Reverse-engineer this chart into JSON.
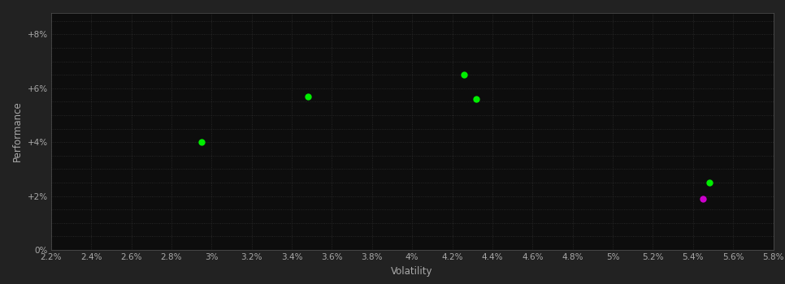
{
  "background_color": "#222222",
  "plot_bg_color": "#0d0d0d",
  "grid_color": "#2a2a2a",
  "xlabel": "Volatility",
  "ylabel": "Performance",
  "xlim": [
    0.022,
    0.058
  ],
  "ylim": [
    0.0,
    0.088
  ],
  "xticks": [
    0.022,
    0.024,
    0.026,
    0.028,
    0.03,
    0.032,
    0.034,
    0.036,
    0.038,
    0.04,
    0.042,
    0.044,
    0.046,
    0.048,
    0.05,
    0.052,
    0.054,
    0.056,
    0.058
  ],
  "yticks_major": [
    0.0,
    0.02,
    0.04,
    0.06,
    0.08
  ],
  "yticks_minor_step": 0.005,
  "xticks_minor_step": 0.002,
  "points_green": [
    [
      0.0295,
      0.04
    ],
    [
      0.0348,
      0.057
    ],
    [
      0.0426,
      0.065
    ],
    [
      0.0432,
      0.056
    ]
  ],
  "point_green_5": [
    0.0548,
    0.025
  ],
  "point_magenta": [
    0.0545,
    0.019
  ],
  "marker_size": 6,
  "green_color": "#00ee00",
  "magenta_color": "#cc00cc",
  "tick_color": "#aaaaaa",
  "tick_fontsize": 7.5,
  "label_fontsize": 8.5,
  "label_color": "#aaaaaa"
}
